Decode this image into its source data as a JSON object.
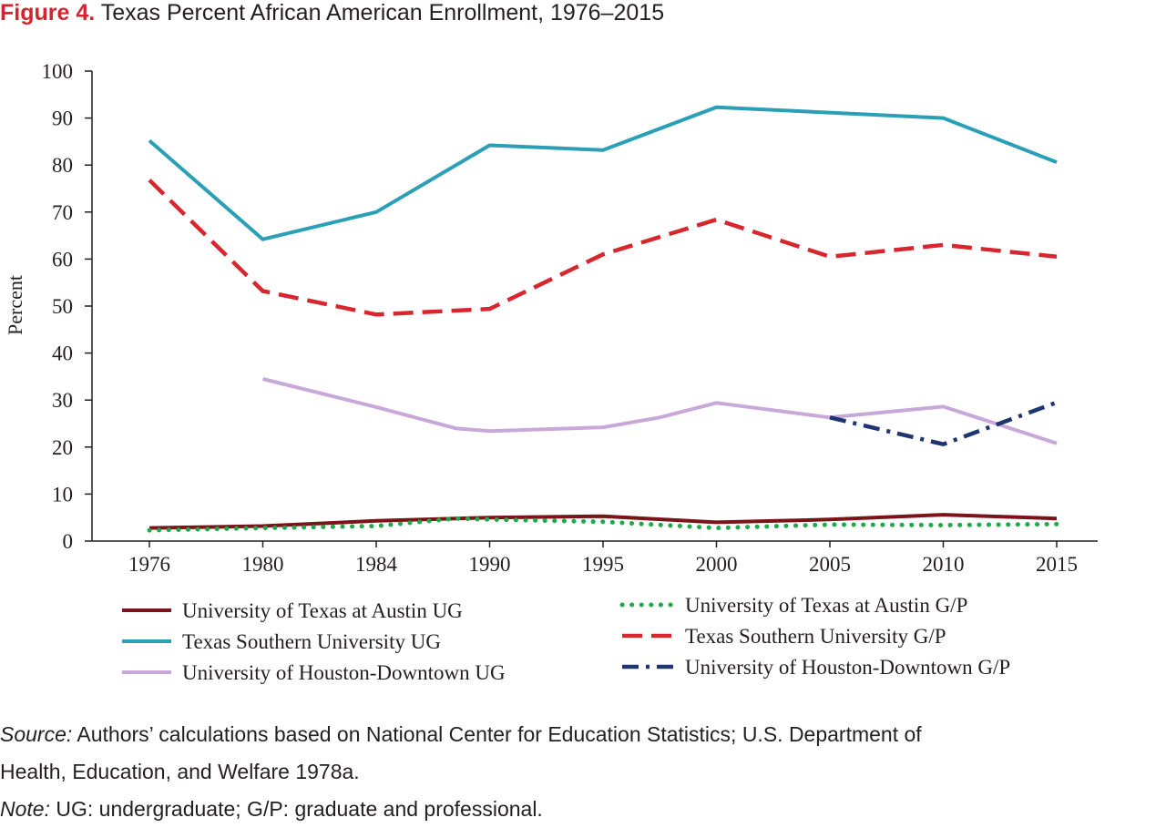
{
  "figure": {
    "label": "Figure 4.",
    "title": "Texas Percent African American Enrollment, 1976–2015"
  },
  "colors": {
    "label_red": "#d4242f",
    "ut_ug": "#7a1418",
    "tsu_ug": "#2a9fb5",
    "uhd_ug": "#c8a8d8",
    "ut_gp": "#1faa4a",
    "tsu_gp": "#d8262f",
    "uhd_gp": "#1f3571"
  },
  "chart_data": {
    "type": "line",
    "categories": [
      "1976",
      "1980",
      "1984",
      "1990",
      "1995",
      "2000",
      "2005",
      "2010",
      "2015"
    ],
    "ylabel": "Percent",
    "ylim": [
      0,
      100
    ],
    "yticks": [
      0,
      10,
      20,
      30,
      40,
      50,
      60,
      70,
      80,
      90,
      100
    ],
    "grid": false,
    "legend_position": "bottom",
    "series": [
      {
        "id": "ut_ug",
        "name": "University of Texas at Austin UG",
        "style": "solid",
        "color": "#7a1418",
        "width": 4,
        "points": [
          [
            0,
            2.8
          ],
          [
            1,
            3.2
          ],
          [
            2,
            4.3
          ],
          [
            3,
            5.0
          ],
          [
            4,
            5.3
          ],
          [
            5,
            4.0
          ],
          [
            6,
            4.6
          ],
          [
            7,
            5.6
          ],
          [
            8,
            4.8
          ]
        ]
      },
      {
        "id": "tsu_ug",
        "name": "Texas Southern University UG",
        "style": "solid",
        "color": "#2a9fb5",
        "width": 4,
        "points": [
          [
            0,
            85.2
          ],
          [
            1,
            64.2
          ],
          [
            2,
            70.0
          ],
          [
            3,
            84.2
          ],
          [
            4,
            83.2
          ],
          [
            5,
            92.3
          ],
          [
            7,
            90.0
          ],
          [
            8,
            80.6
          ]
        ]
      },
      {
        "id": "uhd_ug",
        "name": "University of Houston-Downtown UG",
        "style": "solid",
        "color": "#c8a8d8",
        "width": 4,
        "points": [
          [
            1,
            34.5
          ],
          [
            2,
            28.5
          ],
          [
            2.7,
            24.0
          ],
          [
            3,
            23.4
          ],
          [
            4,
            24.2
          ],
          [
            4.5,
            26.3
          ],
          [
            5,
            29.4
          ],
          [
            6,
            26.3
          ],
          [
            7,
            28.6
          ],
          [
            8,
            20.8
          ]
        ]
      },
      {
        "id": "ut_gp",
        "name": "University of Texas at Austin G/P",
        "style": "dotted",
        "color": "#1faa4a",
        "width": 5,
        "points": [
          [
            0,
            2.3
          ],
          [
            1,
            2.8
          ],
          [
            2,
            3.2
          ],
          [
            2.7,
            4.8
          ],
          [
            3,
            4.6
          ],
          [
            4,
            4.1
          ],
          [
            5,
            2.8
          ],
          [
            6,
            3.5
          ],
          [
            7,
            3.4
          ],
          [
            8,
            3.6
          ]
        ]
      },
      {
        "id": "tsu_gp",
        "name": "Texas Southern University G/P",
        "style": "dashed",
        "color": "#d8262f",
        "width": 4.5,
        "points": [
          [
            0,
            76.8
          ],
          [
            1,
            53.2
          ],
          [
            2,
            48.2
          ],
          [
            3,
            49.4
          ],
          [
            4,
            61.0
          ],
          [
            5,
            68.4
          ],
          [
            6,
            60.5
          ],
          [
            7,
            63.0
          ],
          [
            8,
            60.5
          ]
        ]
      },
      {
        "id": "uhd_gp",
        "name": "University of Houston-Downtown G/P",
        "style": "dashdot",
        "color": "#1f3571",
        "width": 4.5,
        "points": [
          [
            6,
            26.3
          ],
          [
            7,
            20.6
          ],
          [
            8,
            29.5
          ]
        ]
      }
    ]
  },
  "legend": {
    "left": [
      "University of Texas at Austin UG",
      "Texas Southern University UG",
      "University of Houston-Downtown UG"
    ],
    "right": [
      "University of Texas at Austin G/P",
      "Texas Southern University G/P",
      "University of Houston-Downtown G/P"
    ]
  },
  "notes": {
    "source_label": "Source:",
    "source_line1": " Authors’ calculations based on National Center for Education Statistics; U.S. Department of",
    "source_line2": "Health, Education, and Welfare 1978a.",
    "note_label": "Note:",
    "note_text": " UG: undergraduate; G/P: graduate and professional."
  }
}
